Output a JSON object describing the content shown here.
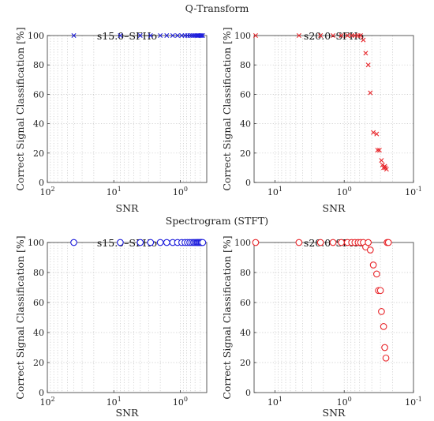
{
  "sections": [
    {
      "title": "Q-Transform"
    },
    {
      "title": "Spectrogram (STFT)"
    }
  ],
  "chart_data": [
    {
      "type": "scatter",
      "section": "Q-Transform",
      "title": "s15.0–SFHo",
      "xlabel": "SNR",
      "ylabel": "Correct Signal Classification [%]",
      "x_scale": "log",
      "x_reversed": true,
      "xlim": [
        100,
        0.4
      ],
      "ylim": [
        0,
        100
      ],
      "yticks": [
        0,
        20,
        40,
        60,
        80,
        100
      ],
      "xticks": [
        {
          "base": "10",
          "exp": "2",
          "value": 100
        },
        {
          "base": "10",
          "exp": "1",
          "value": 10
        },
        {
          "base": "10",
          "exp": "0",
          "value": 1
        }
      ],
      "grid": true,
      "marker": "x",
      "color": "#1f1fdc",
      "series": [
        {
          "x": [
            40,
            8,
            4,
            2.8,
            2,
            1.6,
            1.3,
            1.1,
            0.95,
            0.85,
            0.78,
            0.72,
            0.67,
            0.63,
            0.6,
            0.57,
            0.55,
            0.53,
            0.51,
            0.49,
            0.48,
            0.46
          ],
          "y": [
            100,
            100,
            100,
            100,
            100,
            100,
            100,
            100,
            100,
            100,
            100,
            100,
            100,
            100,
            100,
            100,
            100,
            100,
            100,
            100,
            100,
            100
          ]
        }
      ]
    },
    {
      "type": "scatter",
      "section": "Q-Transform",
      "title": "s20.0–SFHo",
      "xlabel": "SNR",
      "ylabel": "Correct Signal Classification [%]",
      "x_scale": "log",
      "x_reversed": true,
      "xlim": [
        20,
        0.1
      ],
      "ylim": [
        0,
        100
      ],
      "yticks": [
        0,
        20,
        40,
        60,
        80,
        100
      ],
      "xticks": [
        {
          "base": "10",
          "exp": "1",
          "value": 10
        },
        {
          "base": "10",
          "exp": "0",
          "value": 1
        },
        {
          "base": "10",
          "exp": "-1",
          "value": 0.1
        }
      ],
      "grid": true,
      "marker": "x",
      "color": "#e8262b",
      "series": [
        {
          "x": [
            19,
            4.5,
            2.2,
            1.45,
            1.1,
            0.9,
            0.78,
            0.7,
            0.63,
            0.58,
            0.53,
            0.49,
            0.45,
            0.42,
            0.38,
            0.34,
            0.33,
            0.31,
            0.29,
            0.28,
            0.27,
            0.26,
            0.255,
            0.245
          ],
          "y": [
            100,
            100,
            100,
            100,
            100,
            100,
            100,
            100,
            100,
            100,
            97,
            88,
            80,
            61,
            34,
            33,
            22,
            22,
            15,
            12,
            10,
            11,
            10,
            9
          ]
        }
      ]
    },
    {
      "type": "scatter",
      "section": "Spectrogram (STFT)",
      "title": "s15.0–SFHo",
      "xlabel": "SNR",
      "ylabel": "Correct Signal Classification [%]",
      "x_scale": "log",
      "x_reversed": true,
      "xlim": [
        100,
        0.4
      ],
      "ylim": [
        0,
        100
      ],
      "yticks": [
        0,
        20,
        40,
        60,
        80,
        100
      ],
      "xticks": [
        {
          "base": "10",
          "exp": "2",
          "value": 100
        },
        {
          "base": "10",
          "exp": "1",
          "value": 10
        },
        {
          "base": "10",
          "exp": "0",
          "value": 1
        }
      ],
      "grid": true,
      "marker": "o",
      "color": "#1f1fdc",
      "series": [
        {
          "x": [
            40,
            8,
            4,
            2.8,
            2,
            1.6,
            1.3,
            1.1,
            0.95,
            0.85,
            0.78,
            0.72,
            0.67,
            0.63,
            0.6,
            0.57,
            0.55,
            0.53,
            0.51,
            0.49,
            0.48,
            0.46
          ],
          "y": [
            100,
            100,
            100,
            100,
            100,
            100,
            100,
            100,
            100,
            100,
            100,
            100,
            100,
            100,
            100,
            100,
            100,
            100,
            100,
            100,
            100,
            100
          ]
        }
      ]
    },
    {
      "type": "scatter",
      "section": "Spectrogram (STFT)",
      "title": "s20.0–SFHo",
      "xlabel": "SNR",
      "ylabel": "Correct Signal Classification [%]",
      "x_scale": "log",
      "x_reversed": true,
      "xlim": [
        20,
        0.1
      ],
      "ylim": [
        0,
        100
      ],
      "yticks": [
        0,
        20,
        40,
        60,
        80,
        100
      ],
      "xticks": [
        {
          "base": "10",
          "exp": "1",
          "value": 10
        },
        {
          "base": "10",
          "exp": "0",
          "value": 1
        },
        {
          "base": "10",
          "exp": "-1",
          "value": 0.1
        }
      ],
      "grid": true,
      "marker": "o",
      "color": "#e8262b",
      "series": [
        {
          "x": [
            19,
            4.5,
            2.2,
            1.45,
            1.1,
            0.9,
            0.78,
            0.7,
            0.63,
            0.58,
            0.53,
            0.49,
            0.45,
            0.42,
            0.38,
            0.34,
            0.32,
            0.3,
            0.29,
            0.27,
            0.26,
            0.25,
            0.24,
            0.23
          ],
          "y": [
            100,
            100,
            100,
            100,
            100,
            100,
            100,
            100,
            100,
            100,
            100,
            97,
            100,
            95,
            85,
            79,
            68,
            68,
            54,
            44,
            30,
            23,
            100,
            100
          ]
        }
      ]
    }
  ]
}
